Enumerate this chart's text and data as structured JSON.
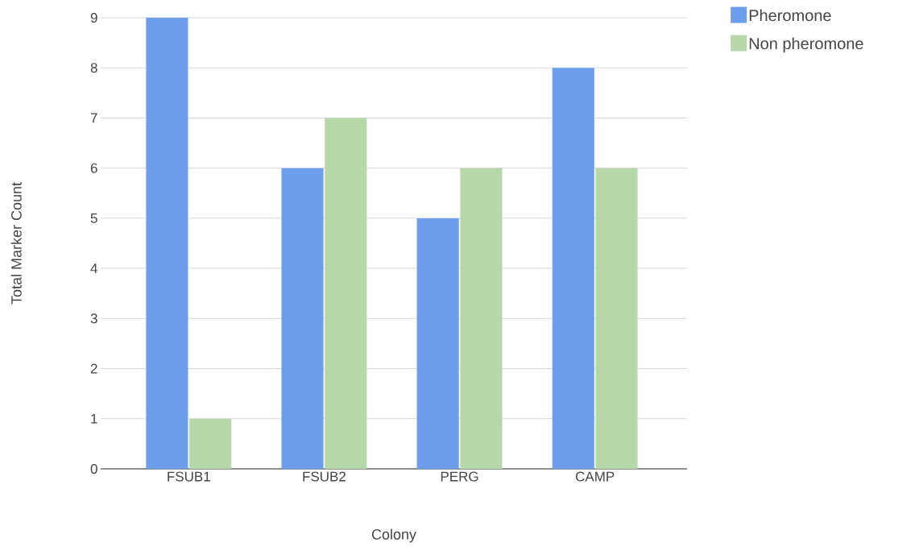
{
  "chart_data": {
    "type": "bar",
    "xlabel": "Colony",
    "ylabel": "Total Marker Count",
    "categories": [
      "FSUB1",
      "FSUB2",
      "PERG",
      "CAMP"
    ],
    "series": [
      {
        "name": "Pheromone",
        "color": "#6d9eeb",
        "values": [
          9,
          6,
          5,
          8
        ]
      },
      {
        "name": "Non pheromone",
        "color": "#b6d7a8",
        "values": [
          1,
          7,
          6,
          6
        ]
      }
    ],
    "ylim": [
      0,
      9
    ],
    "yticks": [
      0,
      1,
      2,
      3,
      4,
      5,
      6,
      7,
      8,
      9
    ],
    "grid": "y",
    "legend": "top right"
  }
}
